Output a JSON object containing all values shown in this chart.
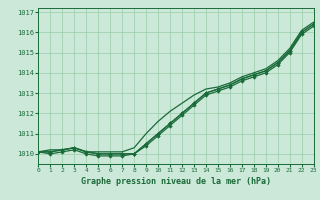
{
  "title": "Graphe pression niveau de la mer (hPa)",
  "bg_color": "#cce8d8",
  "grid_color": "#99ccaa",
  "line_color": "#1a6b3a",
  "marker_color": "#1a6b3a",
  "xlim": [
    0,
    23
  ],
  "ylim": [
    1009.5,
    1017.2
  ],
  "yticks": [
    1010,
    1011,
    1012,
    1013,
    1014,
    1015,
    1016,
    1017
  ],
  "xticks": [
    0,
    1,
    2,
    3,
    4,
    5,
    6,
    7,
    8,
    9,
    10,
    11,
    12,
    13,
    14,
    15,
    16,
    17,
    18,
    19,
    20,
    21,
    22,
    23
  ],
  "series": [
    {
      "y": [
        1010.1,
        1010.2,
        1010.2,
        1010.3,
        1010.1,
        1010.1,
        1010.1,
        1010.1,
        1010.3,
        1011.0,
        1011.6,
        1012.1,
        1012.5,
        1012.9,
        1013.2,
        1013.3,
        1013.5,
        1013.8,
        1014.0,
        1014.2,
        1014.6,
        1015.2,
        1016.1,
        1016.5
      ],
      "marker": false,
      "linewidth": 0.9
    },
    {
      "y": [
        1010.1,
        1010.1,
        1010.2,
        1010.3,
        1010.1,
        1010.0,
        1010.0,
        1010.0,
        1010.0,
        1010.5,
        1011.0,
        1011.5,
        1012.0,
        1012.5,
        1013.0,
        1013.2,
        1013.4,
        1013.7,
        1013.9,
        1014.1,
        1014.5,
        1015.1,
        1016.0,
        1016.4
      ],
      "marker": true,
      "linewidth": 0.9
    },
    {
      "y": [
        1010.1,
        1010.1,
        1010.2,
        1010.3,
        1010.1,
        1010.0,
        1010.0,
        1010.0,
        1010.0,
        1010.5,
        1011.0,
        1011.5,
        1012.0,
        1012.5,
        1013.0,
        1013.2,
        1013.4,
        1013.7,
        1013.9,
        1014.1,
        1014.5,
        1015.1,
        1016.0,
        1016.4
      ],
      "marker": true,
      "linewidth": 0.9
    },
    {
      "y": [
        1010.1,
        1010.0,
        1010.1,
        1010.2,
        1010.0,
        1009.9,
        1009.9,
        1009.9,
        1010.0,
        1010.4,
        1010.9,
        1011.4,
        1011.9,
        1012.4,
        1012.9,
        1013.1,
        1013.3,
        1013.6,
        1013.8,
        1014.0,
        1014.4,
        1015.0,
        1015.9,
        1016.3
      ],
      "marker": true,
      "linewidth": 0.9
    }
  ],
  "ylabel_fontsize": 5.5,
  "xlabel_fontsize": 6.0,
  "tick_fontsize": 5.0,
  "figsize": [
    3.2,
    2.0
  ],
  "dpi": 100
}
